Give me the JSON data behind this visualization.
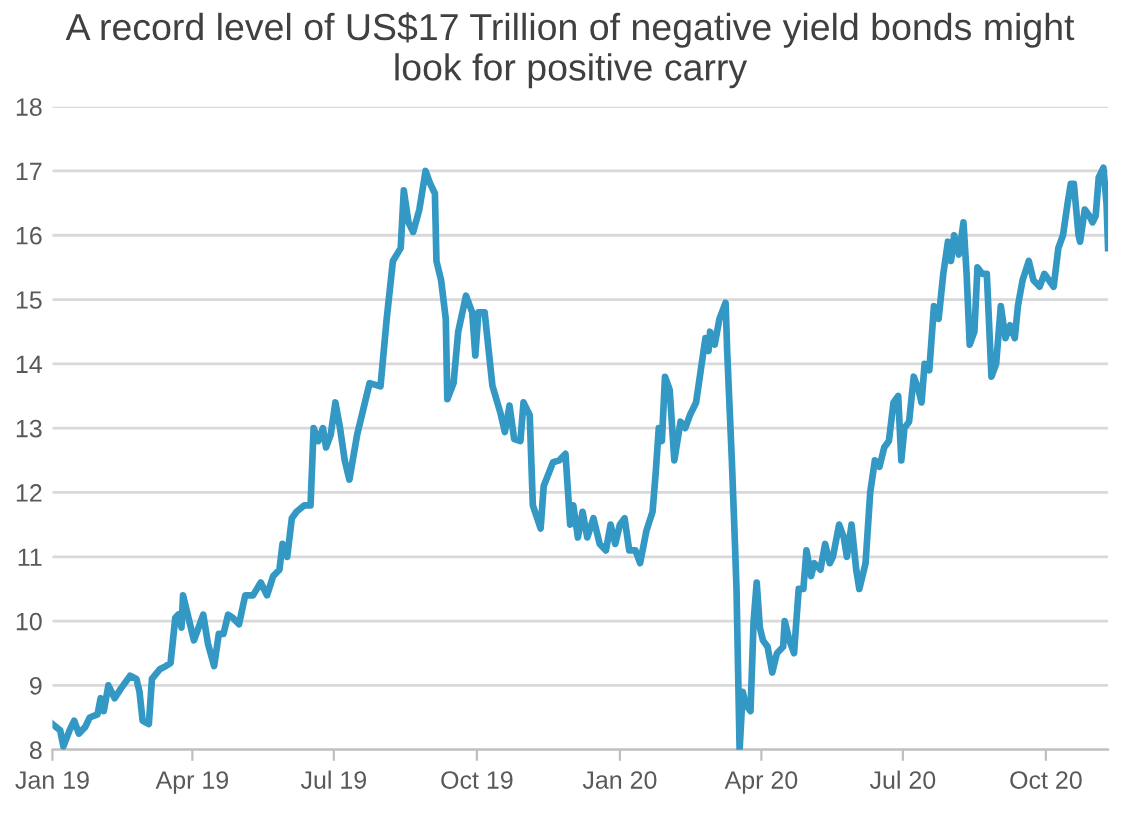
{
  "chart_data": {
    "type": "line",
    "title": "A record level of US$17 Trillion of negative yield bonds might\nlook for positive carry",
    "x": [
      "2019-01-01",
      "2019-01-06",
      "2019-01-08",
      "2019-01-12",
      "2019-01-15",
      "2019-01-18",
      "2019-01-22",
      "2019-01-25",
      "2019-01-30",
      "2019-02-01",
      "2019-02-03",
      "2019-02-06",
      "2019-02-10",
      "2019-02-14",
      "2019-02-20",
      "2019-02-24",
      "2019-02-26",
      "2019-02-28",
      "2019-03-04",
      "2019-03-06",
      "2019-03-11",
      "2019-03-15",
      "2019-03-18",
      "2019-03-21",
      "2019-03-23",
      "2019-03-25",
      "2019-03-26",
      "2019-03-29",
      "2019-04-02",
      "2019-04-05",
      "2019-04-08",
      "2019-04-11",
      "2019-04-15",
      "2019-04-18",
      "2019-04-21",
      "2019-04-24",
      "2019-04-27",
      "2019-05-01",
      "2019-05-05",
      "2019-05-10",
      "2019-05-15",
      "2019-05-19",
      "2019-05-23",
      "2019-05-27",
      "2019-05-29",
      "2019-06-01",
      "2019-06-04",
      "2019-06-07",
      "2019-06-12",
      "2019-06-16",
      "2019-06-18",
      "2019-06-21",
      "2019-06-24",
      "2019-06-26",
      "2019-06-29",
      "2019-07-02",
      "2019-07-05",
      "2019-07-08",
      "2019-07-11",
      "2019-07-16",
      "2019-07-20",
      "2019-07-24",
      "2019-07-31",
      "2019-08-04",
      "2019-08-08",
      "2019-08-13",
      "2019-08-15",
      "2019-08-18",
      "2019-08-21",
      "2019-08-25",
      "2019-08-29",
      "2019-09-01",
      "2019-09-04",
      "2019-09-05",
      "2019-09-08",
      "2019-09-11",
      "2019-09-12",
      "2019-09-16",
      "2019-09-19",
      "2019-09-24",
      "2019-09-28",
      "2019-09-30",
      "2019-10-02",
      "2019-10-06",
      "2019-10-11",
      "2019-10-16",
      "2019-10-19",
      "2019-10-22",
      "2019-10-25",
      "2019-10-29",
      "2019-10-31",
      "2019-11-04",
      "2019-11-06",
      "2019-11-11",
      "2019-11-13",
      "2019-11-19",
      "2019-11-23",
      "2019-11-27",
      "2019-11-30",
      "2019-12-02",
      "2019-12-05",
      "2019-12-08",
      "2019-12-11",
      "2019-12-15",
      "2019-12-19",
      "2019-12-23",
      "2019-12-26",
      "2019-12-29",
      "2020-01-01",
      "2020-01-04",
      "2020-01-07",
      "2020-01-11",
      "2020-01-14",
      "2020-01-18",
      "2020-01-22",
      "2020-01-24",
      "2020-01-26",
      "2020-01-28",
      "2020-01-30",
      "2020-02-02",
      "2020-02-05",
      "2020-02-09",
      "2020-02-12",
      "2020-02-15",
      "2020-02-19",
      "2020-02-22",
      "2020-02-25",
      "2020-02-27",
      "2020-02-28",
      "2020-03-02",
      "2020-03-05",
      "2020-03-09",
      "2020-03-10",
      "2020-03-13",
      "2020-03-15",
      "2020-03-16",
      "2020-03-18",
      "2020-03-20",
      "2020-03-22",
      "2020-03-25",
      "2020-03-27",
      "2020-03-29",
      "2020-03-31",
      "2020-04-02",
      "2020-04-05",
      "2020-04-08",
      "2020-04-11",
      "2020-04-15",
      "2020-04-16",
      "2020-04-19",
      "2020-04-22",
      "2020-04-25",
      "2020-04-28",
      "2020-04-30",
      "2020-05-03",
      "2020-05-05",
      "2020-05-09",
      "2020-05-12",
      "2020-05-15",
      "2020-05-17",
      "2020-05-21",
      "2020-05-24",
      "2020-05-26",
      "2020-05-29",
      "2020-06-01",
      "2020-06-03",
      "2020-06-07",
      "2020-06-10",
      "2020-06-13",
      "2020-06-16",
      "2020-06-19",
      "2020-06-22",
      "2020-06-25",
      "2020-06-28",
      "2020-06-30",
      "2020-07-02",
      "2020-07-05",
      "2020-07-08",
      "2020-07-11",
      "2020-07-13",
      "2020-07-15",
      "2020-07-18",
      "2020-07-21",
      "2020-07-24",
      "2020-07-27",
      "2020-07-30",
      "2020-08-01",
      "2020-08-03",
      "2020-08-06",
      "2020-08-09",
      "2020-08-11",
      "2020-08-13",
      "2020-08-16",
      "2020-08-18",
      "2020-08-21",
      "2020-08-24",
      "2020-08-27",
      "2020-08-30",
      "2020-09-02",
      "2020-09-05",
      "2020-09-08",
      "2020-09-11",
      "2020-09-13",
      "2020-09-16",
      "2020-09-20",
      "2020-09-23",
      "2020-09-27",
      "2020-09-30",
      "2020-10-03",
      "2020-10-06",
      "2020-10-09",
      "2020-10-12",
      "2020-10-15",
      "2020-10-17",
      "2020-10-19",
      "2020-10-22",
      "2020-10-23",
      "2020-10-26",
      "2020-10-29",
      "2020-10-31",
      "2020-11-02",
      "2020-11-04",
      "2020-11-07",
      "2020-11-09",
      "2020-11-10"
    ],
    "series": [
      {
        "color": "#3398c4",
        "values": [
          8.4,
          8.3,
          8.05,
          8.3,
          8.45,
          8.25,
          8.35,
          8.5,
          8.55,
          8.8,
          8.6,
          9.0,
          8.8,
          8.95,
          9.15,
          9.1,
          8.9,
          8.45,
          8.4,
          9.1,
          9.25,
          9.3,
          9.35,
          10.05,
          10.1,
          9.9,
          10.4,
          10.1,
          9.7,
          9.9,
          10.1,
          9.65,
          9.3,
          9.8,
          9.8,
          10.1,
          10.05,
          9.95,
          10.4,
          10.4,
          10.6,
          10.4,
          10.7,
          10.8,
          11.2,
          11.0,
          11.6,
          11.7,
          11.8,
          11.8,
          13.0,
          12.8,
          13.0,
          12.7,
          12.9,
          13.4,
          13.0,
          12.5,
          12.2,
          12.9,
          13.3,
          13.7,
          13.65,
          14.7,
          15.6,
          15.8,
          16.7,
          16.2,
          16.05,
          16.4,
          17.0,
          16.8,
          16.65,
          15.6,
          15.3,
          14.7,
          13.45,
          13.7,
          14.5,
          15.06,
          14.8,
          14.13,
          14.8,
          14.8,
          13.66,
          13.25,
          12.94,
          13.35,
          12.83,
          12.8,
          13.4,
          13.2,
          11.8,
          11.44,
          12.1,
          12.47,
          12.5,
          12.6,
          11.5,
          11.8,
          11.3,
          11.7,
          11.3,
          11.6,
          11.2,
          11.1,
          11.5,
          11.2,
          11.5,
          11.6,
          11.1,
          11.1,
          10.9,
          11.4,
          11.7,
          12.3,
          13.0,
          12.8,
          13.8,
          13.6,
          12.5,
          13.1,
          13.0,
          13.2,
          13.4,
          13.9,
          14.4,
          14.2,
          14.5,
          14.3,
          14.7,
          14.95,
          14.2,
          12.5,
          11.2,
          10.5,
          8.0,
          8.9,
          8.7,
          8.6,
          10.0,
          10.6,
          9.9,
          9.7,
          9.6,
          9.2,
          9.5,
          9.6,
          10.0,
          9.7,
          9.5,
          10.5,
          10.5,
          11.1,
          10.7,
          10.9,
          10.8,
          11.2,
          10.9,
          11.0,
          11.5,
          11.3,
          11.0,
          11.5,
          10.8,
          10.5,
          10.9,
          12.0,
          12.5,
          12.4,
          12.7,
          12.8,
          13.4,
          13.5,
          12.5,
          13.0,
          13.1,
          13.8,
          13.6,
          13.4,
          14.0,
          13.9,
          14.9,
          14.7,
          15.4,
          15.9,
          15.6,
          16.0,
          15.7,
          16.2,
          15.4,
          14.3,
          14.5,
          15.5,
          15.4,
          15.4,
          13.8,
          14.0,
          14.9,
          14.4,
          14.6,
          14.4,
          14.9,
          15.3,
          15.6,
          15.3,
          15.2,
          15.4,
          15.3,
          15.2,
          15.8,
          16.0,
          16.5,
          16.8,
          16.8,
          16.0,
          15.9,
          16.4,
          16.3,
          16.2,
          16.3,
          16.9,
          17.05,
          16.5,
          15.8
        ]
      }
    ],
    "xlim": [
      "2019-01-01",
      "2020-11-10"
    ],
    "xticks": [
      {
        "value": "2019-01-01",
        "label": "Jan 19"
      },
      {
        "value": "2019-04-01",
        "label": "Apr 19"
      },
      {
        "value": "2019-07-01",
        "label": "Jul 19"
      },
      {
        "value": "2019-10-01",
        "label": "Oct 19"
      },
      {
        "value": "2020-01-01",
        "label": "Jan 20"
      },
      {
        "value": "2020-04-01",
        "label": "Apr 20"
      },
      {
        "value": "2020-07-01",
        "label": "Jul 20"
      },
      {
        "value": "2020-10-01",
        "label": "Oct 20"
      }
    ],
    "ylim": [
      8,
      18
    ],
    "yticks": [
      8,
      9,
      10,
      11,
      12,
      13,
      14,
      15,
      16,
      17,
      18
    ],
    "grid": "y"
  }
}
